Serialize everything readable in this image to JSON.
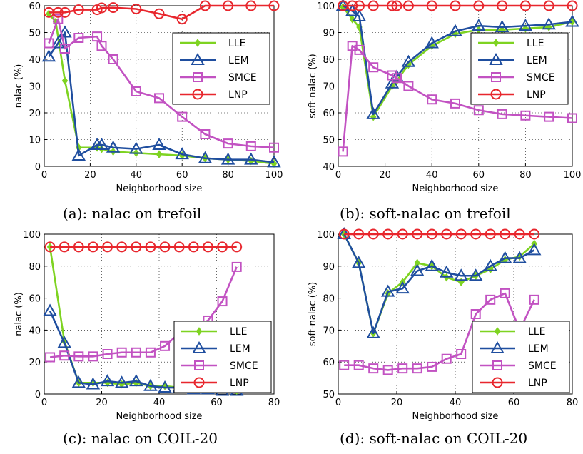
{
  "colors": {
    "LLE": "#7ed321",
    "LEM": "#1f4e9f",
    "SMCE": "#c252c2",
    "LNP": "#e8262d"
  },
  "chart_data": [
    {
      "type": "line",
      "caption": "(a): nalac on trefoil",
      "xlabel": "Neighborhood size",
      "ylabel": "nalac (%)",
      "xlim": [
        0,
        100
      ],
      "ylim": [
        0,
        60
      ],
      "xticks": [
        "0",
        "20",
        "40",
        "60",
        "80",
        "100"
      ],
      "yticks": [
        "0",
        "10",
        "20",
        "30",
        "40",
        "50",
        "60"
      ],
      "grid": true,
      "legend_position": "right",
      "series": [
        {
          "name": "LLE",
          "x": [
            2,
            5,
            9,
            15,
            23,
            25,
            30,
            40,
            50,
            60,
            70,
            80,
            90,
            100
          ],
          "y": [
            57,
            54,
            32,
            7,
            7,
            6.5,
            5.5,
            5,
            4.5,
            4,
            3,
            2.5,
            2,
            1
          ]
        },
        {
          "name": "LEM",
          "x": [
            2,
            6,
            9,
            15,
            23,
            25,
            30,
            40,
            50,
            60,
            70,
            80,
            90,
            100
          ],
          "y": [
            41,
            46,
            50,
            4,
            8,
            8,
            7,
            6.5,
            8,
            4.5,
            3,
            2.5,
            2.5,
            1.5
          ]
        },
        {
          "name": "SMCE",
          "x": [
            2,
            6,
            9,
            15,
            23,
            25,
            30,
            40,
            50,
            60,
            70,
            80,
            90,
            100
          ],
          "y": [
            46,
            55,
            44,
            48,
            48.5,
            45,
            40,
            28,
            25.5,
            18.5,
            12,
            8.5,
            7.5,
            7
          ]
        },
        {
          "name": "LNP",
          "x": [
            2,
            6,
            9,
            15,
            23,
            25,
            30,
            40,
            50,
            60,
            70,
            80,
            90,
            100
          ],
          "y": [
            57.5,
            57.5,
            57.5,
            58.5,
            58.5,
            59.2,
            59.3,
            58.8,
            57,
            55,
            60,
            60,
            60,
            60
          ]
        }
      ]
    },
    {
      "type": "line",
      "caption": "(b): soft-nalac on trefoil",
      "xlabel": "Neighborhood size",
      "ylabel": "soft-nalac (%)",
      "xlim": [
        0,
        100
      ],
      "ylim": [
        40,
        100
      ],
      "xticks": [
        "0",
        "20",
        "40",
        "60",
        "80",
        "100"
      ],
      "yticks": [
        "40",
        "50",
        "60",
        "70",
        "80",
        "90",
        "100"
      ],
      "grid": true,
      "legend_position": "right",
      "series": [
        {
          "name": "LLE",
          "x": [
            2,
            6,
            9,
            15,
            23,
            25,
            30,
            40,
            50,
            60,
            70,
            80,
            90,
            100
          ],
          "y": [
            99.5,
            95,
            92,
            58.5,
            70,
            72,
            78,
            85,
            89.5,
            91,
            91,
            91.5,
            92,
            94
          ]
        },
        {
          "name": "LEM",
          "x": [
            2,
            6,
            9,
            15,
            23,
            25,
            30,
            40,
            50,
            60,
            70,
            80,
            90,
            100
          ],
          "y": [
            100,
            98,
            96,
            59.5,
            71,
            73.5,
            79,
            86,
            90.5,
            92.5,
            92,
            92.5,
            93,
            94
          ]
        },
        {
          "name": "SMCE",
          "x": [
            2,
            6,
            9,
            15,
            23,
            25,
            30,
            40,
            50,
            60,
            70,
            80,
            90,
            100
          ],
          "y": [
            45.5,
            85,
            83.5,
            77,
            74,
            73,
            70,
            65,
            63.5,
            61,
            59.5,
            59,
            58.5,
            58
          ]
        },
        {
          "name": "LNP",
          "x": [
            2,
            6,
            9,
            15,
            23,
            25,
            30,
            40,
            50,
            60,
            70,
            80,
            90,
            100
          ],
          "y": [
            100,
            100,
            100,
            100,
            100,
            100,
            100,
            100,
            100,
            100,
            100,
            100,
            100,
            100
          ]
        }
      ]
    },
    {
      "type": "line",
      "caption": "(c): nalac on COIL-20",
      "xlabel": "Neighborhood size",
      "ylabel": "nalac (%)",
      "xlim": [
        0,
        80
      ],
      "ylim": [
        0,
        100
      ],
      "xticks": [
        "0",
        "20",
        "40",
        "60",
        "80"
      ],
      "yticks": [
        "0",
        "20",
        "40",
        "60",
        "80",
        "100"
      ],
      "grid": true,
      "legend_position": "right",
      "series": [
        {
          "name": "LLE",
          "x": [
            2,
            7,
            12,
            17,
            22,
            27,
            32,
            37,
            42,
            47,
            52,
            57,
            62,
            67
          ],
          "y": [
            92,
            33,
            7,
            7,
            7,
            6,
            7,
            5,
            5,
            4,
            3,
            3,
            3,
            2
          ]
        },
        {
          "name": "LEM",
          "x": [
            2,
            7,
            12,
            17,
            22,
            27,
            32,
            37,
            42,
            47,
            52,
            57,
            62,
            67
          ],
          "y": [
            52,
            32,
            7,
            6,
            8,
            7,
            8,
            5,
            4,
            4,
            3,
            3,
            2,
            2
          ]
        },
        {
          "name": "SMCE",
          "x": [
            2,
            7,
            12,
            17,
            22,
            27,
            32,
            37,
            42,
            47,
            52,
            57,
            62,
            67
          ],
          "y": [
            23,
            24,
            23.5,
            23.5,
            25,
            26,
            26,
            26,
            30,
            38,
            42,
            46,
            58,
            79.5
          ]
        },
        {
          "name": "LNP",
          "x": [
            2,
            7,
            12,
            17,
            22,
            27,
            32,
            37,
            42,
            47,
            52,
            57,
            62,
            67
          ],
          "y": [
            92,
            92,
            92,
            92,
            92,
            92,
            92,
            92,
            92,
            92,
            92,
            92,
            92,
            92
          ]
        }
      ]
    },
    {
      "type": "line",
      "caption": "(d): soft-nalac on COIL-20",
      "xlabel": "Neighborhood size",
      "ylabel": "soft-nalac (%)",
      "xlim": [
        0,
        80
      ],
      "ylim": [
        50,
        100
      ],
      "xticks": [
        "0",
        "20",
        "40",
        "60",
        "80"
      ],
      "yticks": [
        "50",
        "60",
        "70",
        "80",
        "90",
        "100"
      ],
      "grid": true,
      "legend_position": "right",
      "series": [
        {
          "name": "LLE",
          "x": [
            2,
            7,
            12,
            17,
            22,
            27,
            32,
            37,
            42,
            47,
            52,
            57,
            62,
            67
          ],
          "y": [
            100,
            91,
            69,
            81.5,
            85,
            91,
            90,
            86.5,
            85,
            87,
            89,
            92,
            93,
            97
          ]
        },
        {
          "name": "LEM",
          "x": [
            2,
            7,
            12,
            17,
            22,
            27,
            32,
            37,
            42,
            47,
            52,
            57,
            62,
            67
          ],
          "y": [
            100,
            91,
            69,
            82,
            83,
            88.5,
            90,
            88,
            87,
            87,
            90,
            92.5,
            92.5,
            95
          ]
        },
        {
          "name": "SMCE",
          "x": [
            2,
            7,
            12,
            17,
            22,
            27,
            32,
            37,
            42,
            47,
            52,
            57,
            62,
            67
          ],
          "y": [
            59,
            59,
            58,
            57.5,
            58,
            58,
            58.5,
            61,
            62.5,
            75,
            79.5,
            81.5,
            70,
            79.5
          ]
        },
        {
          "name": "LNP",
          "x": [
            2,
            7,
            12,
            17,
            22,
            27,
            32,
            37,
            42,
            47,
            52,
            57,
            62,
            67
          ],
          "y": [
            100,
            100,
            100,
            100,
            100,
            100,
            100,
            100,
            100,
            100,
            100,
            100,
            100,
            100
          ]
        }
      ]
    }
  ]
}
